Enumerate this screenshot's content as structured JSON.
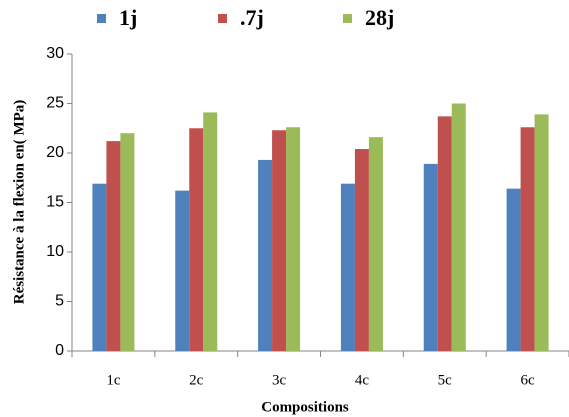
{
  "chart_data": {
    "type": "bar",
    "categories": [
      "1c",
      "2c",
      "3c",
      "4c",
      "5c",
      "6c"
    ],
    "series": [
      {
        "name": "1j",
        "color": "#4f81bd",
        "values": [
          16.9,
          16.2,
          19.3,
          16.9,
          18.9,
          16.4
        ]
      },
      {
        "name": ".7j",
        "color": "#c0504d",
        "values": [
          21.2,
          22.5,
          22.3,
          20.4,
          23.7,
          22.6
        ]
      },
      {
        "name": "28j",
        "color": "#9bbb59",
        "values": [
          22.0,
          24.1,
          22.6,
          21.6,
          25.0,
          23.9
        ]
      }
    ],
    "ylim": [
      0,
      30
    ],
    "yticks": [
      0,
      5,
      10,
      15,
      20,
      25,
      30
    ],
    "xlabel": "Compositions",
    "ylabel": "Résistance à la flexion en( MPa)",
    "grid": false,
    "legend": "top"
  }
}
